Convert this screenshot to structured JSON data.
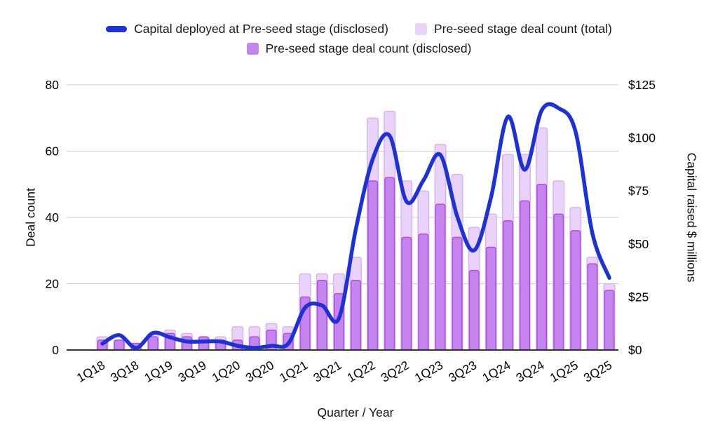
{
  "legend": {
    "items": [
      {
        "label": "Capital deployed at Pre-seed stage (disclosed)",
        "swatch": "line"
      },
      {
        "label": "Pre-seed stage deal count (total)",
        "swatch": "square-light"
      },
      {
        "label": "Pre-seed stage deal count (disclosed)",
        "swatch": "square-dark"
      }
    ]
  },
  "chart_data": {
    "type": "combo-bar-line",
    "title": "",
    "xlabel": "Quarter / Year",
    "categories": [
      "1Q18",
      "2Q18",
      "3Q18",
      "4Q18",
      "1Q19",
      "2Q19",
      "3Q19",
      "4Q19",
      "1Q20",
      "2Q20",
      "3Q20",
      "4Q20",
      "1Q21",
      "2Q21",
      "3Q21",
      "4Q21",
      "1Q22",
      "2Q22",
      "3Q22",
      "4Q22",
      "1Q23",
      "2Q23",
      "3Q23",
      "4Q23",
      "1Q24",
      "2Q24",
      "3Q24",
      "4Q24",
      "1Q25",
      "2Q25",
      "3Q25"
    ],
    "x_tick_labels": [
      "1Q18",
      "3Q18",
      "1Q19",
      "3Q19",
      "1Q20",
      "3Q20",
      "1Q21",
      "3Q21",
      "1Q22",
      "3Q22",
      "1Q23",
      "3Q23",
      "1Q24",
      "3Q24",
      "1Q25",
      "3Q25"
    ],
    "series": [
      {
        "name": "Pre-seed stage deal count (total)",
        "type": "bar",
        "axis": "left",
        "values": [
          4,
          3,
          2,
          5,
          6,
          5,
          4,
          4,
          7,
          7,
          8,
          7,
          23,
          23,
          23,
          28,
          70,
          72,
          51,
          48,
          62,
          53,
          37,
          41,
          59,
          59,
          67,
          51,
          43,
          28,
          20
        ]
      },
      {
        "name": "Pre-seed stage deal count (disclosed)",
        "type": "bar",
        "axis": "left",
        "values": [
          3,
          3,
          2,
          4,
          5,
          4,
          4,
          3,
          3,
          4,
          6,
          5,
          16,
          21,
          17,
          21,
          51,
          52,
          34,
          35,
          44,
          34,
          24,
          31,
          39,
          45,
          50,
          41,
          36,
          26,
          18
        ]
      },
      {
        "name": "Capital deployed at Pre-seed stage (disclosed)",
        "type": "line",
        "axis": "right",
        "values": [
          3,
          7,
          1,
          8,
          6,
          4,
          4,
          4,
          2,
          1,
          2,
          3,
          20,
          21,
          15,
          57,
          90,
          101,
          70,
          80,
          92,
          63,
          47,
          72,
          110,
          85,
          113,
          114,
          103,
          55,
          34
        ]
      }
    ],
    "left_axis": {
      "label": "Deal count",
      "ticks": [
        0,
        20,
        40,
        60,
        80
      ],
      "range": [
        0,
        80
      ]
    },
    "right_axis": {
      "label": "Capital raised $ millions",
      "ticks": [
        "$0",
        "$25",
        "$50",
        "$75",
        "$100",
        "$125"
      ],
      "tick_values": [
        0,
        25,
        50,
        75,
        100,
        125
      ],
      "range": [
        0,
        125
      ]
    },
    "grid": "horizontal",
    "legend_position": "top",
    "colors": {
      "line": "#1c31d8",
      "bar_total_fill": "#e9d3f8",
      "bar_total_border": "#d9b4f1",
      "bar_disclosed_fill": "#c584ee",
      "bar_disclosed_border": "#ac52e2",
      "grid": "#cccccc",
      "axis_line": "#333333",
      "text": "#000000"
    }
  }
}
